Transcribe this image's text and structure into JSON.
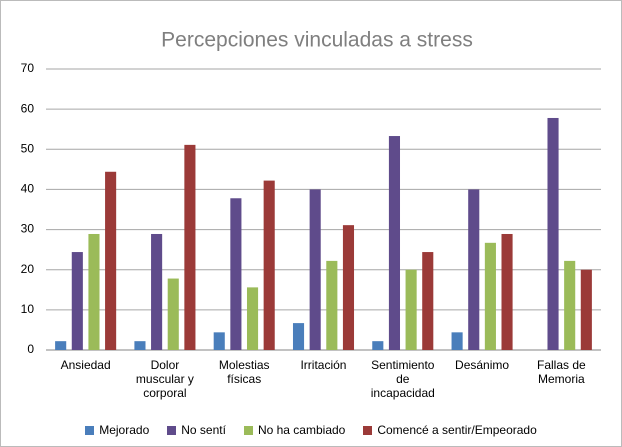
{
  "chart_data": {
    "type": "bar",
    "title": "Percepciones vinculadas a stress",
    "categories": [
      "Ansiedad",
      "Dolor muscular y corporal",
      "Molestias físicas",
      "Irritación",
      "Sentimiento de incapacidad",
      "Desánimo",
      "Fallas de Memoria"
    ],
    "series": [
      {
        "name": "Mejorado",
        "color": "#4a7ebb",
        "values": [
          2.2,
          2.2,
          4.4,
          6.7,
          2.2,
          4.4,
          0
        ]
      },
      {
        "name": "No sentí",
        "color": "#5f4b8b",
        "values": [
          24.4,
          28.9,
          37.8,
          40,
          53.3,
          40,
          57.8
        ]
      },
      {
        "name": "No ha cambiado",
        "color": "#9bbb59",
        "values": [
          28.9,
          17.8,
          15.6,
          22.2,
          20,
          26.7,
          22.2
        ]
      },
      {
        "name": "Comencé a sentir/Empeorado",
        "color": "#9b3a38",
        "values": [
          44.4,
          51.1,
          42.2,
          31.1,
          24.4,
          28.9,
          20
        ]
      }
    ],
    "ylim": [
      0,
      70
    ],
    "yticks": [
      0,
      10,
      20,
      30,
      40,
      50,
      60,
      70
    ],
    "grid": true,
    "legend": "bottom"
  }
}
